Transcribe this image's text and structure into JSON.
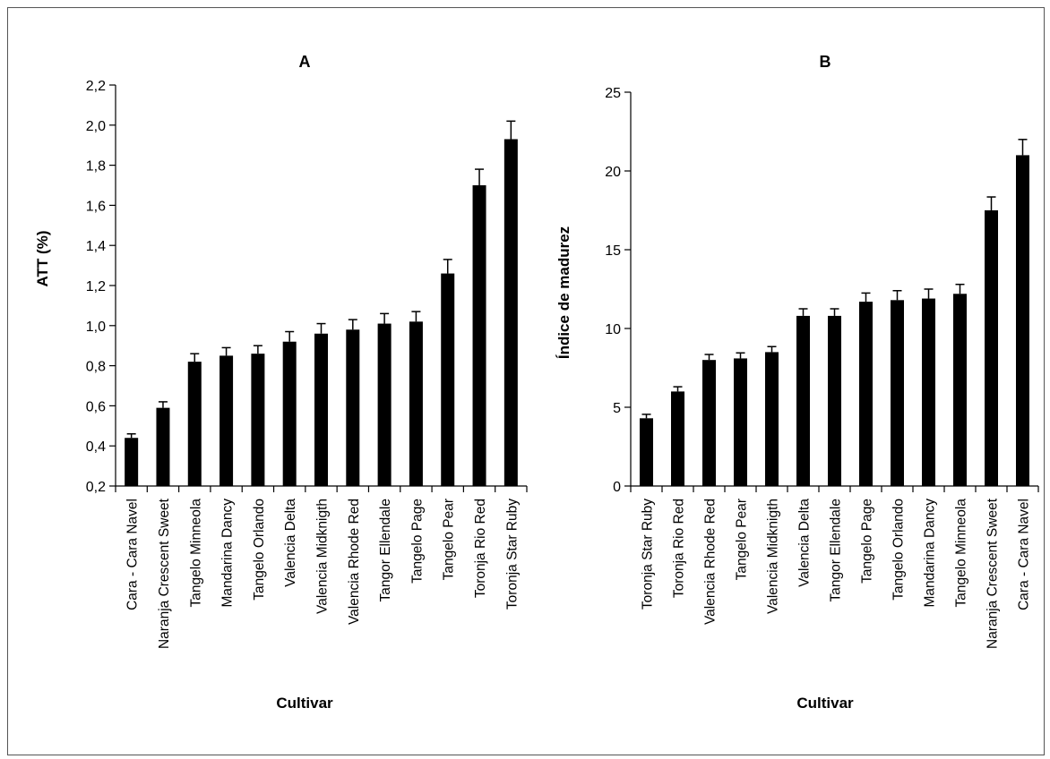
{
  "chart_data": [
    {
      "type": "bar",
      "title": "A",
      "xlabel": "Cultivar",
      "ylabel": "ATT (%)",
      "ylim": [
        0.2,
        2.2
      ],
      "yticks": [
        "0,2",
        "0,4",
        "0,6",
        "0,8",
        "1,0",
        "1,2",
        "1,4",
        "1,6",
        "1,8",
        "2,0",
        "2,2"
      ],
      "categories": [
        "Cara - Cara Navel",
        "Naranja Crescent Sweet",
        "Tangelo Minneola",
        "Mandarina Dancy",
        "Tangelo Orlando",
        "Valencia Delta",
        "Valencia Midknigth",
        "Valencia Rhode Red",
        "Tangor Ellendale",
        "Tangelo Page",
        "Tangelo Pear",
        "Toronja Rio Red",
        "Toronja Star Ruby"
      ],
      "values": [
        0.44,
        0.59,
        0.82,
        0.85,
        0.86,
        0.92,
        0.96,
        0.98,
        1.01,
        1.02,
        1.26,
        1.7,
        1.93
      ],
      "errors": [
        0.02,
        0.03,
        0.04,
        0.04,
        0.04,
        0.05,
        0.05,
        0.05,
        0.05,
        0.05,
        0.07,
        0.08,
        0.09
      ],
      "grid": false,
      "bar_color": "#000000"
    },
    {
      "type": "bar",
      "title": "B",
      "xlabel": "Cultivar",
      "ylabel": "Índice de madurez",
      "ylim": [
        0,
        25
      ],
      "yticks": [
        "0",
        "5",
        "10",
        "15",
        "20",
        "25"
      ],
      "categories": [
        "Toronja Star Ruby",
        "Toronja Rio Red",
        "Valencia Rhode Red",
        "Tangelo Pear",
        "Valencia Midknigth",
        "Valencia Delta",
        "Tangor Ellendale",
        "Tangelo Page",
        "Tangelo Orlando",
        "Mandarina Dancy",
        "Tangelo Minneola",
        "Naranja Crescent Sweet",
        "Cara - Cara Navel"
      ],
      "values": [
        4.3,
        6.0,
        8.0,
        8.1,
        8.5,
        10.8,
        10.8,
        11.7,
        11.8,
        11.9,
        12.2,
        17.5,
        21.0
      ],
      "errors": [
        0.25,
        0.3,
        0.35,
        0.35,
        0.35,
        0.45,
        0.45,
        0.55,
        0.6,
        0.6,
        0.6,
        0.85,
        1.0
      ],
      "grid": false,
      "bar_color": "#000000"
    }
  ]
}
